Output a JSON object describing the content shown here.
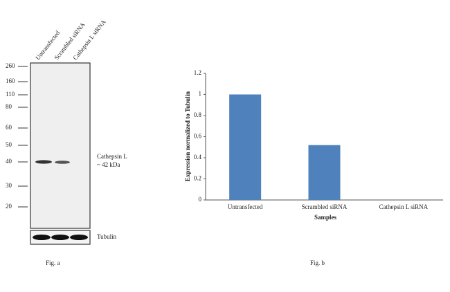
{
  "blot": {
    "lanes": [
      "Untransfected",
      "Scrambled siRNA",
      "Cathepsin L siRNA"
    ],
    "markers": [
      "260",
      "160",
      "110",
      "80",
      "60",
      "50",
      "40",
      "30",
      "20"
    ],
    "band_label": [
      "Cathepsin L",
      "~ 42 kDa"
    ],
    "loading_label": "Tubulin",
    "caption": "Fig. a"
  },
  "chart_data": {
    "type": "bar",
    "caption": "Fig. b",
    "x_label": "Samples",
    "y_label": "Expression  normalized to Tubulin",
    "categories": [
      "Untransfected",
      "Scrambled siRNA",
      "Cathepsin L siRNA"
    ],
    "values": [
      1,
      0.52,
      0
    ],
    "color": "#4f81bd",
    "ylim": [
      0,
      1.2
    ],
    "yticks": [
      0,
      0.2,
      0.4,
      0.6,
      0.8,
      1,
      1.2
    ]
  }
}
